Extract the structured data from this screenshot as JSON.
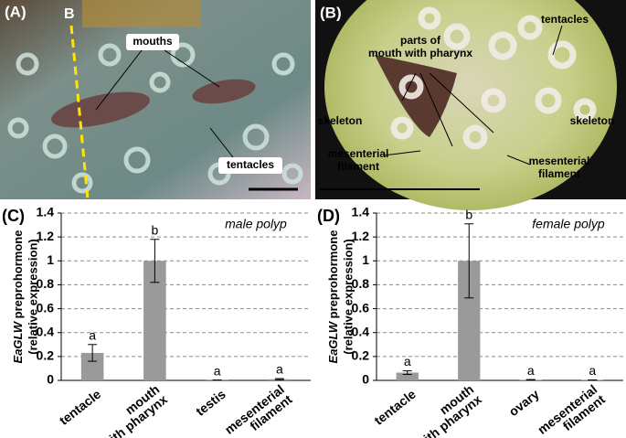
{
  "panels": {
    "A": {
      "label": "(A)",
      "marker": "B",
      "mouths": "mouths",
      "tentacles": "tentacles"
    },
    "B": {
      "label": "(B)",
      "tentacles": "tentacles",
      "mouth_parts": "parts of\nmouth with pharynx",
      "skeleton_left": "skeleton",
      "skeleton_right": "skeleton",
      "filament_left": "mesenterial\nfilament",
      "filament_right": "mesenterial\nfilament"
    }
  },
  "chart_data": [
    {
      "type": "bar",
      "panel_label": "(C)",
      "annotation": "male polyp",
      "ylabel": {
        "gene": "EaGLW",
        "rest": "preprohormone",
        "unit": "(relative expression)"
      },
      "categories": [
        "tentacle",
        "mouth\nwith pharynx",
        "testis",
        "mesenterial\nfilament"
      ],
      "values": [
        0.23,
        1.0,
        0.002,
        0.01
      ],
      "errors": [
        0.07,
        0.18,
        0.001,
        0.005
      ],
      "significance": [
        "a",
        "b",
        "a",
        "a"
      ],
      "color": "#9a9a9a",
      "ylim": [
        0,
        1.4
      ],
      "yticks": [
        0,
        0.2,
        0.4,
        0.6,
        0.8,
        1,
        1.2,
        1.4
      ],
      "grid": true
    },
    {
      "type": "bar",
      "panel_label": "(D)",
      "annotation": "female polyp",
      "ylabel": {
        "gene": "EaGLW",
        "rest": "preprohormone",
        "unit": "(relative expression)"
      },
      "categories": [
        "tentacle",
        "mouth\nwith pharynx",
        "ovary",
        "mesenterial\nfilament"
      ],
      "values": [
        0.065,
        1.0,
        0.005,
        0.003
      ],
      "errors": [
        0.015,
        0.31,
        0.002,
        0.001
      ],
      "significance": [
        "a",
        "b",
        "a",
        "a"
      ],
      "color": "#9a9a9a",
      "ylim": [
        0,
        1.4
      ],
      "yticks": [
        0,
        0.2,
        0.4,
        0.6,
        0.8,
        1,
        1.2,
        1.4
      ],
      "grid": true
    }
  ]
}
